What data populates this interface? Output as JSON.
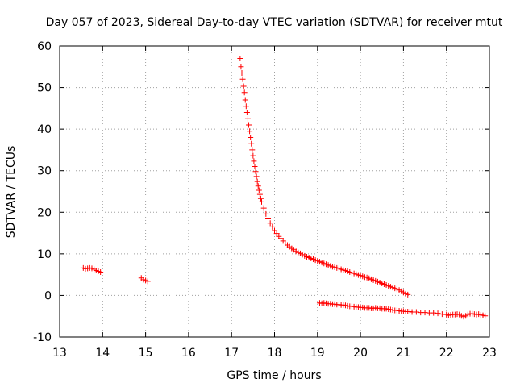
{
  "chart_data": {
    "type": "scatter",
    "title": "Day 057 of 2023, Sidereal Day-to-day VTEC variation (SDTVAR) for receiver mtut",
    "xlabel": "GPS time / hours",
    "ylabel": "SDTVAR / TECUs",
    "xlim": [
      13,
      23
    ],
    "ylim": [
      -10,
      60
    ],
    "xticks": [
      13,
      14,
      15,
      16,
      17,
      18,
      19,
      20,
      21,
      22,
      23
    ],
    "yticks": [
      -10,
      0,
      10,
      20,
      30,
      40,
      50,
      60
    ],
    "grid": true,
    "marker": "plus",
    "color": "#ff0000",
    "series": [
      {
        "name": "SDTVAR",
        "points": [
          [
            13.55,
            6.6
          ],
          [
            13.6,
            6.4
          ],
          [
            13.65,
            6.5
          ],
          [
            13.7,
            6.6
          ],
          [
            13.75,
            6.5
          ],
          [
            13.8,
            6.3
          ],
          [
            13.85,
            6.0
          ],
          [
            13.9,
            5.8
          ],
          [
            13.95,
            5.6
          ],
          [
            14.9,
            4.2
          ],
          [
            14.95,
            3.8
          ],
          [
            15.0,
            3.6
          ],
          [
            15.05,
            3.4
          ],
          [
            17.2,
            57.0
          ],
          [
            17.22,
            55.0
          ],
          [
            17.24,
            53.5
          ],
          [
            17.26,
            52.0
          ],
          [
            17.28,
            50.3
          ],
          [
            17.3,
            48.8
          ],
          [
            17.32,
            47.0
          ],
          [
            17.34,
            45.5
          ],
          [
            17.36,
            44.0
          ],
          [
            17.38,
            42.5
          ],
          [
            17.4,
            41.0
          ],
          [
            17.42,
            39.5
          ],
          [
            17.44,
            38.0
          ],
          [
            17.46,
            36.5
          ],
          [
            17.48,
            35.0
          ],
          [
            17.5,
            33.6
          ],
          [
            17.52,
            32.3
          ],
          [
            17.54,
            31.0
          ],
          [
            17.56,
            29.8
          ],
          [
            17.58,
            28.6
          ],
          [
            17.6,
            27.4
          ],
          [
            17.62,
            26.3
          ],
          [
            17.64,
            25.3
          ],
          [
            17.66,
            24.3
          ],
          [
            17.68,
            23.3
          ],
          [
            17.7,
            22.5
          ],
          [
            17.75,
            21.0
          ],
          [
            17.8,
            19.6
          ],
          [
            17.85,
            18.4
          ],
          [
            17.9,
            17.4
          ],
          [
            17.95,
            16.5
          ],
          [
            18.0,
            15.6
          ],
          [
            18.05,
            14.9
          ],
          [
            18.1,
            14.2
          ],
          [
            18.15,
            13.7
          ],
          [
            18.2,
            13.1
          ],
          [
            18.25,
            12.6
          ],
          [
            18.3,
            12.1
          ],
          [
            18.35,
            11.7
          ],
          [
            18.4,
            11.3
          ],
          [
            18.45,
            11.0
          ],
          [
            18.5,
            10.6
          ],
          [
            18.55,
            10.3
          ],
          [
            18.6,
            10.1
          ],
          [
            18.65,
            9.8
          ],
          [
            18.7,
            9.5
          ],
          [
            18.75,
            9.3
          ],
          [
            18.8,
            9.1
          ],
          [
            18.85,
            8.9
          ],
          [
            18.9,
            8.7
          ],
          [
            18.95,
            8.5
          ],
          [
            19.0,
            8.3
          ],
          [
            19.05,
            8.1
          ],
          [
            19.1,
            7.9
          ],
          [
            19.15,
            7.7
          ],
          [
            19.2,
            7.5
          ],
          [
            19.25,
            7.3
          ],
          [
            19.3,
            7.1
          ],
          [
            19.35,
            6.9
          ],
          [
            19.4,
            6.8
          ],
          [
            19.45,
            6.6
          ],
          [
            19.5,
            6.5
          ],
          [
            19.55,
            6.3
          ],
          [
            19.6,
            6.1
          ],
          [
            19.65,
            6.0
          ],
          [
            19.7,
            5.8
          ],
          [
            19.75,
            5.6
          ],
          [
            19.8,
            5.4
          ],
          [
            19.85,
            5.3
          ],
          [
            19.9,
            5.1
          ],
          [
            19.95,
            4.9
          ],
          [
            20.0,
            4.8
          ],
          [
            20.05,
            4.6
          ],
          [
            20.1,
            4.4
          ],
          [
            20.15,
            4.3
          ],
          [
            20.2,
            4.1
          ],
          [
            20.25,
            3.9
          ],
          [
            20.3,
            3.7
          ],
          [
            20.35,
            3.5
          ],
          [
            20.4,
            3.3
          ],
          [
            20.45,
            3.1
          ],
          [
            20.5,
            2.9
          ],
          [
            20.55,
            2.7
          ],
          [
            20.6,
            2.5
          ],
          [
            20.65,
            2.3
          ],
          [
            20.7,
            2.1
          ],
          [
            20.75,
            1.9
          ],
          [
            20.8,
            1.7
          ],
          [
            20.85,
            1.5
          ],
          [
            20.9,
            1.3
          ],
          [
            20.95,
            1.0
          ],
          [
            21.0,
            0.7
          ],
          [
            21.05,
            0.4
          ],
          [
            21.1,
            0.2
          ],
          [
            19.05,
            -1.8
          ],
          [
            19.1,
            -1.9
          ],
          [
            19.15,
            -1.8
          ],
          [
            19.2,
            -1.9
          ],
          [
            19.25,
            -2.0
          ],
          [
            19.3,
            -2.0
          ],
          [
            19.35,
            -2.1
          ],
          [
            19.4,
            -2.1
          ],
          [
            19.45,
            -2.2
          ],
          [
            19.5,
            -2.2
          ],
          [
            19.55,
            -2.3
          ],
          [
            19.6,
            -2.3
          ],
          [
            19.65,
            -2.4
          ],
          [
            19.7,
            -2.5
          ],
          [
            19.75,
            -2.6
          ],
          [
            19.8,
            -2.6
          ],
          [
            19.85,
            -2.7
          ],
          [
            19.9,
            -2.8
          ],
          [
            19.95,
            -2.8
          ],
          [
            20.0,
            -2.9
          ],
          [
            20.05,
            -2.9
          ],
          [
            20.1,
            -3.0
          ],
          [
            20.15,
            -3.0
          ],
          [
            20.2,
            -3.0
          ],
          [
            20.25,
            -3.1
          ],
          [
            20.3,
            -3.1
          ],
          [
            20.35,
            -3.0
          ],
          [
            20.4,
            -3.1
          ],
          [
            20.45,
            -3.1
          ],
          [
            20.5,
            -3.2
          ],
          [
            20.55,
            -3.2
          ],
          [
            20.6,
            -3.2
          ],
          [
            20.65,
            -3.3
          ],
          [
            20.7,
            -3.4
          ],
          [
            20.75,
            -3.5
          ],
          [
            20.8,
            -3.6
          ],
          [
            20.85,
            -3.6
          ],
          [
            20.9,
            -3.7
          ],
          [
            20.95,
            -3.8
          ],
          [
            21.0,
            -3.8
          ],
          [
            21.05,
            -3.9
          ],
          [
            21.1,
            -3.9
          ],
          [
            21.15,
            -3.9
          ],
          [
            21.2,
            -4.0
          ],
          [
            21.3,
            -4.0
          ],
          [
            21.4,
            -4.1
          ],
          [
            21.5,
            -4.1
          ],
          [
            21.6,
            -4.2
          ],
          [
            21.7,
            -4.2
          ],
          [
            21.8,
            -4.3
          ],
          [
            21.9,
            -4.5
          ],
          [
            22.0,
            -4.6
          ],
          [
            22.05,
            -4.8
          ],
          [
            22.1,
            -4.7
          ],
          [
            22.15,
            -4.6
          ],
          [
            22.2,
            -4.6
          ],
          [
            22.25,
            -4.5
          ],
          [
            22.3,
            -4.6
          ],
          [
            22.35,
            -4.9
          ],
          [
            22.4,
            -5.1
          ],
          [
            22.45,
            -4.9
          ],
          [
            22.5,
            -4.6
          ],
          [
            22.55,
            -4.4
          ],
          [
            22.6,
            -4.4
          ],
          [
            22.65,
            -4.5
          ],
          [
            22.7,
            -4.6
          ],
          [
            22.75,
            -4.5
          ],
          [
            22.8,
            -4.7
          ],
          [
            22.85,
            -4.8
          ],
          [
            22.9,
            -4.9
          ]
        ]
      }
    ]
  }
}
